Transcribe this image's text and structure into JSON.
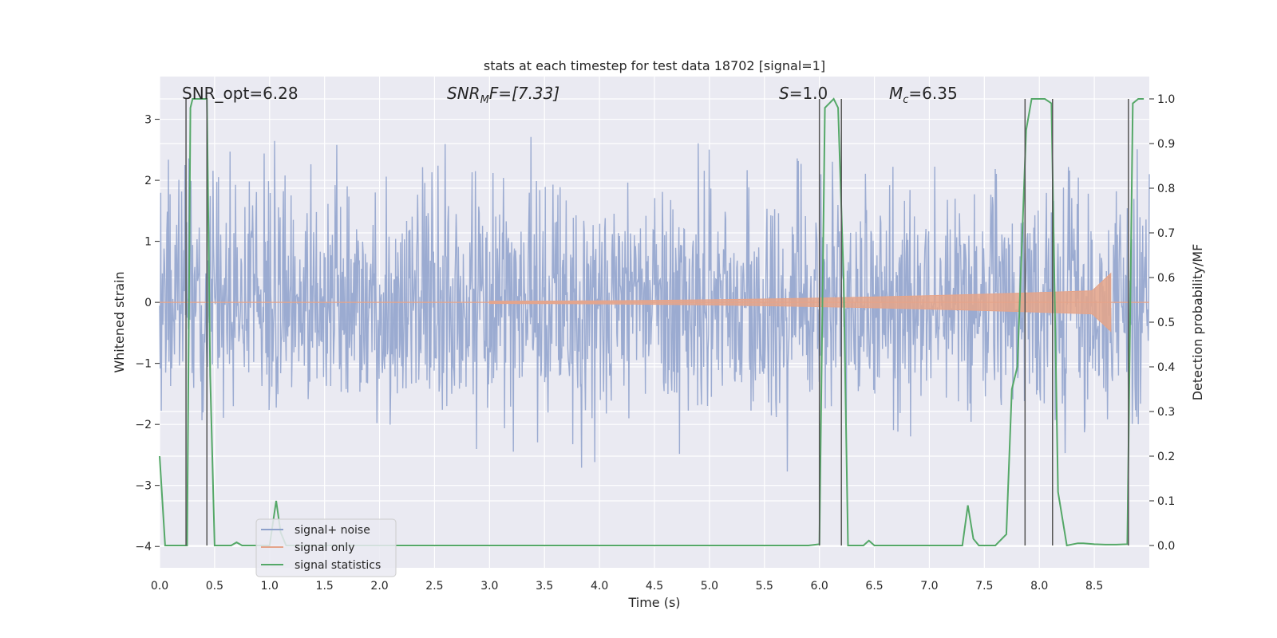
{
  "chart_data": {
    "type": "line",
    "title": "stats at each timestep for test data 18702 [signal=1]",
    "xlabel": "Time (s)",
    "ylabel_left": "Whitened strain",
    "ylabel_right": "Detection probability/MF",
    "xlim": [
      0,
      9.0
    ],
    "ylim_left": [
      -4.35,
      3.7
    ],
    "ylim_right": [
      -0.05,
      1.05
    ],
    "grid": true,
    "x_ticks": [
      0.0,
      0.5,
      1.0,
      1.5,
      2.0,
      2.5,
      3.0,
      3.5,
      4.0,
      4.5,
      5.0,
      5.5,
      6.0,
      6.5,
      7.0,
      7.5,
      8.0,
      8.5
    ],
    "x_tick_labels": [
      "0.0",
      "0.5",
      "1.0",
      "1.5",
      "2.0",
      "2.5",
      "3.0",
      "3.5",
      "4.0",
      "4.5",
      "5.0",
      "5.5",
      "6.0",
      "6.5",
      "7.0",
      "7.5",
      "8.0",
      "8.5"
    ],
    "y_left_ticks": [
      3,
      2,
      1,
      0,
      -1,
      -2,
      -3,
      -4
    ],
    "y_left_tick_labels": [
      "3",
      "2",
      "1",
      "0",
      "−1",
      "−2",
      "−3",
      "−4"
    ],
    "y_right_ticks": [
      1.0,
      0.9,
      0.8,
      0.7,
      0.6,
      0.5,
      0.4,
      0.3,
      0.2,
      0.1,
      0.0
    ],
    "y_right_tick_labels": [
      "1.0",
      "0.9",
      "0.8",
      "0.7",
      "0.6",
      "0.5",
      "0.4",
      "0.3",
      "0.2",
      "0.1",
      "0.0"
    ],
    "annotations": {
      "snr_opt": "SNR_opt=6.28",
      "snr_mf_main": "SNR",
      "snr_mf_sub": "M",
      "snr_mf_rest": "F=[7.33]",
      "s_main": "S",
      "s_rest": "=1.0",
      "mc_main": "M",
      "mc_sub": "c",
      "mc_rest": "=6.35"
    },
    "vertical_lines_x": [
      0.24,
      0.43,
      6.0,
      6.2,
      7.87,
      8.12,
      8.81
    ],
    "series": [
      {
        "name": "signal+ noise",
        "color": "#8da0cb",
        "axis": "left",
        "samples": 1800,
        "typical_amplitude": 1.0,
        "peak_max": 3.35,
        "peak_min": -3.1
      },
      {
        "name": "signal only",
        "color": "#e5a48a",
        "axis": "left",
        "chirp_start": 3.0,
        "chirp_end": 8.65,
        "peak_amplitude": 0.5
      },
      {
        "name": "signal statistics",
        "color": "#55a868",
        "axis": "right",
        "x": [
          0.0,
          0.05,
          0.1,
          0.15,
          0.2,
          0.25,
          0.28,
          0.3,
          0.35,
          0.4,
          0.43,
          0.46,
          0.5,
          0.55,
          0.6,
          0.65,
          0.7,
          0.75,
          0.8,
          0.9,
          1.0,
          1.03,
          1.06,
          1.1,
          1.15,
          1.2,
          1.3,
          1.5,
          2.0,
          3.0,
          4.0,
          5.0,
          5.5,
          5.9,
          6.0,
          6.05,
          6.13,
          6.17,
          6.22,
          6.26,
          6.3,
          6.4,
          6.45,
          6.5,
          7.0,
          7.3,
          7.35,
          7.4,
          7.45,
          7.6,
          7.7,
          7.75,
          7.8,
          7.88,
          7.93,
          8.0,
          8.05,
          8.11,
          8.17,
          8.25,
          8.35,
          8.4,
          8.5,
          8.6,
          8.7,
          8.8,
          8.85,
          8.9,
          8.95
        ],
        "y": [
          0.2,
          0.0,
          0.0,
          0.0,
          0.0,
          0.0,
          0.98,
          1.0,
          1.0,
          1.0,
          1.0,
          0.38,
          0.0,
          0.0,
          0.0,
          0.0,
          0.007,
          0.0,
          0.0,
          0.0,
          0.0,
          0.05,
          0.1,
          0.03,
          0.0,
          0.0,
          0.0,
          0.0,
          0.0,
          0.0,
          0.0,
          0.0,
          0.0,
          0.0,
          0.003,
          0.98,
          1.0,
          0.98,
          0.6,
          0.0,
          0.0,
          0.0,
          0.011,
          0.0,
          0.0,
          0.0,
          0.09,
          0.015,
          0.0,
          0.0,
          0.025,
          0.35,
          0.4,
          0.93,
          1.0,
          1.0,
          1.0,
          0.99,
          0.12,
          0.0,
          0.005,
          0.005,
          0.003,
          0.002,
          0.002,
          0.003,
          0.99,
          1.0,
          1.0
        ]
      }
    ]
  }
}
